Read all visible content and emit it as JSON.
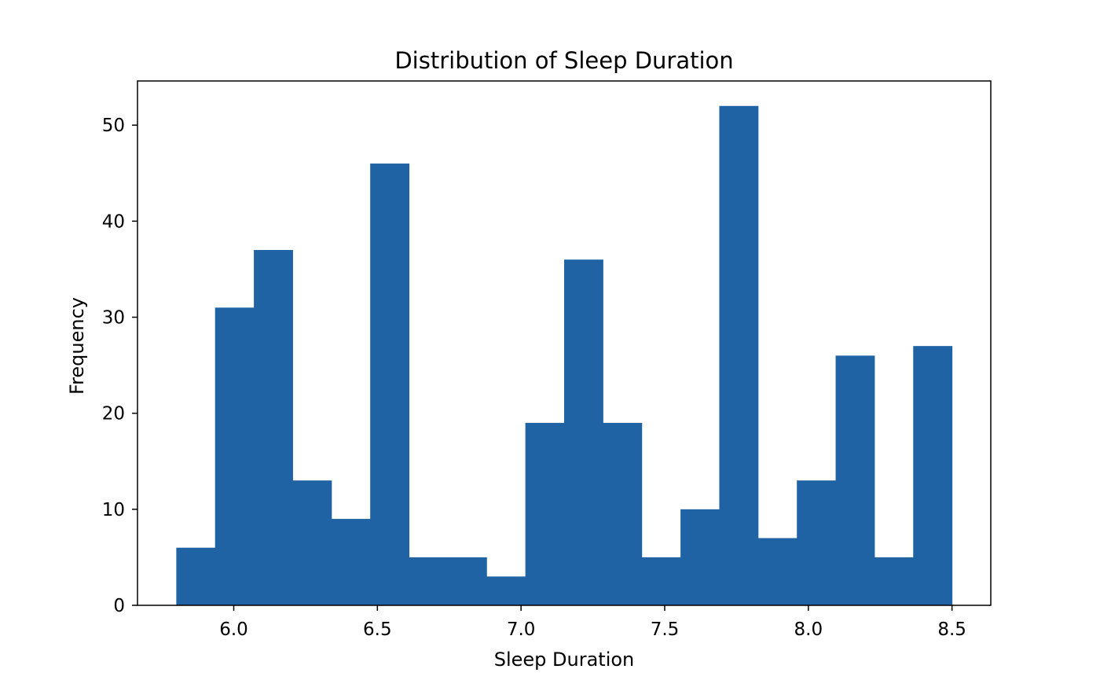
{
  "chart_data": {
    "type": "histogram",
    "title": "Distribution of Sleep Duration",
    "xlabel": "Sleep Duration",
    "ylabel": "Frequency",
    "x_range": [
      5.8,
      8.5
    ],
    "bin_width": 0.135,
    "bin_edges": [
      5.8,
      5.935,
      6.07,
      6.205,
      6.34,
      6.475,
      6.61,
      6.745,
      6.88,
      7.015,
      7.15,
      7.285,
      7.42,
      7.555,
      7.69,
      7.825,
      7.96,
      8.095,
      8.23,
      8.365,
      8.5
    ],
    "counts": [
      6,
      31,
      37,
      13,
      9,
      46,
      5,
      5,
      3,
      19,
      36,
      19,
      5,
      10,
      52,
      7,
      13,
      26,
      5,
      27
    ],
    "xlim": [
      5.665,
      8.635
    ],
    "ylim": [
      0,
      54.6
    ],
    "xticks": [
      6.0,
      6.5,
      7.0,
      7.5,
      8.0,
      8.5
    ],
    "xtick_labels": [
      "6.0",
      "6.5",
      "7.0",
      "7.5",
      "8.0",
      "8.5"
    ],
    "yticks": [
      0,
      10,
      20,
      30,
      40,
      50
    ],
    "ytick_labels": [
      "0",
      "10",
      "20",
      "30",
      "40",
      "50"
    ],
    "grid": false,
    "legend": "none",
    "bar_color": "#1f63a4"
  }
}
